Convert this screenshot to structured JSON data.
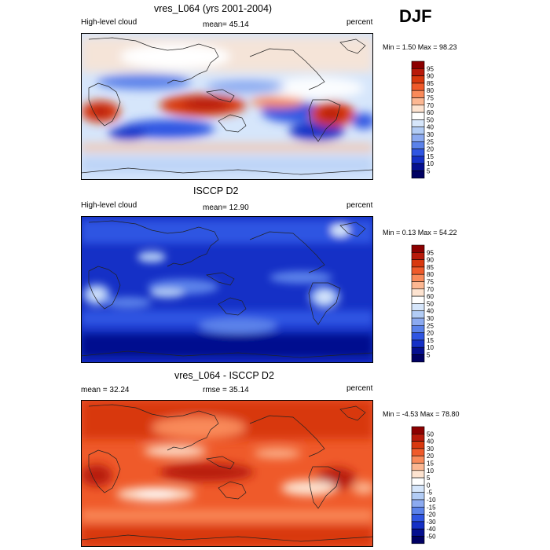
{
  "season": "DJF",
  "panels": [
    {
      "title": "vres_L064 (yrs 2001-2004)",
      "left_label": "High-level cloud",
      "center_label": "mean=  45.14",
      "right_label": "percent",
      "minmax": "Min =   1.50 Max =  98.23",
      "colorbar": {
        "levels": [
          "95",
          "90",
          "85",
          "80",
          "75",
          "70",
          "60",
          "50",
          "40",
          "30",
          "25",
          "20",
          "15",
          "10",
          "5"
        ],
        "colors": [
          "#8c0000",
          "#b81a0a",
          "#d8380e",
          "#ef5a2a",
          "#f98a5a",
          "#fcb792",
          "#fde3d0",
          "#ffffff",
          "#d6e6fb",
          "#b2ccf5",
          "#8caaf0",
          "#5b82ea",
          "#2f55e2",
          "#1530c6",
          "#050f8f",
          "#000063"
        ]
      }
    },
    {
      "title": "ISCCP D2",
      "left_label": "High-level cloud",
      "center_label": "mean=  12.90",
      "right_label": "percent",
      "minmax": "Min =   0.13 Max =  54.22",
      "colorbar": {
        "levels": [
          "95",
          "90",
          "85",
          "80",
          "75",
          "70",
          "60",
          "50",
          "40",
          "30",
          "25",
          "20",
          "15",
          "10",
          "5"
        ],
        "colors": [
          "#8c0000",
          "#b81a0a",
          "#d8380e",
          "#ef5a2a",
          "#f98a5a",
          "#fcb792",
          "#fde3d0",
          "#ffffff",
          "#d6e6fb",
          "#b2ccf5",
          "#8caaf0",
          "#5b82ea",
          "#2f55e2",
          "#1530c6",
          "#050f8f",
          "#000063"
        ]
      }
    },
    {
      "title": "vres_L064 - ISCCP D2",
      "left_label": "mean =  32.24",
      "center_label": "rmse =  35.14",
      "right_label": "percent",
      "minmax": "Min =  -4.53 Max =  78.80",
      "colorbar": {
        "levels": [
          "50",
          "40",
          "30",
          "20",
          "15",
          "10",
          "5",
          "0",
          "-5",
          "-10",
          "-15",
          "-20",
          "-30",
          "-40",
          "-50"
        ],
        "colors": [
          "#8c0000",
          "#b81a0a",
          "#d8380e",
          "#ef5a2a",
          "#f98a5a",
          "#fcb792",
          "#fde3d0",
          "#ffffff",
          "#d6e6fb",
          "#b2ccf5",
          "#8caaf0",
          "#5b82ea",
          "#2f55e2",
          "#1530c6",
          "#050f8f",
          "#000063"
        ]
      }
    }
  ],
  "chart_data": [
    {
      "type": "heatmap",
      "title": "vres_L064 (yrs 2001-2004)",
      "variable": "High-level cloud",
      "units": "percent",
      "mean": 45.14,
      "min": 1.5,
      "max": 98.23,
      "contour_levels": [
        5,
        10,
        15,
        20,
        25,
        30,
        40,
        50,
        60,
        70,
        75,
        80,
        85,
        90,
        95
      ]
    },
    {
      "type": "heatmap",
      "title": "ISCCP D2",
      "variable": "High-level cloud",
      "units": "percent",
      "mean": 12.9,
      "min": 0.13,
      "max": 54.22,
      "contour_levels": [
        5,
        10,
        15,
        20,
        25,
        30,
        40,
        50,
        60,
        70,
        75,
        80,
        85,
        90,
        95
      ]
    },
    {
      "type": "heatmap",
      "title": "vres_L064 - ISCCP D2",
      "units": "percent",
      "mean": 32.24,
      "rmse": 35.14,
      "min": -4.53,
      "max": 78.8,
      "contour_levels": [
        -50,
        -40,
        -30,
        -20,
        -15,
        -10,
        -5,
        0,
        5,
        10,
        15,
        20,
        30,
        40,
        50
      ]
    }
  ]
}
